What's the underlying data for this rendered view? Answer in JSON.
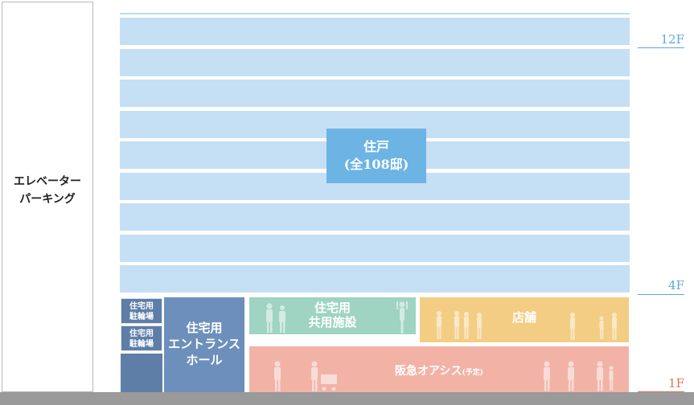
{
  "parking": {
    "label": "エレベーター\nパーキング"
  },
  "residence": {
    "label": "住戸\n(全108邸)"
  },
  "parking_small": [
    "住宅用\n駐輪場",
    "住宅用\n駐輪場"
  ],
  "entrance": {
    "label": "住宅用\nエントランス\nホール"
  },
  "common": {
    "label": "住宅用\n共用施設"
  },
  "shop": {
    "label": "店舗"
  },
  "oasis": {
    "label": "阪急オアシス",
    "note": "(予定)"
  },
  "floors": [
    {
      "label": "12F",
      "color": "#5ea8d8"
    },
    {
      "label": "4F",
      "color": "#5ea8d8"
    },
    {
      "label": "1F",
      "color": "#e0725f"
    }
  ],
  "colors": {
    "residence_band": "#c5dff5",
    "residence_box": "#6cb4e4",
    "entrance": "#6d8fbb",
    "common": "#9ed4c1",
    "shop": "#f4cd85",
    "oasis": "#f2b3a6",
    "ground": "#9a9a9a"
  }
}
